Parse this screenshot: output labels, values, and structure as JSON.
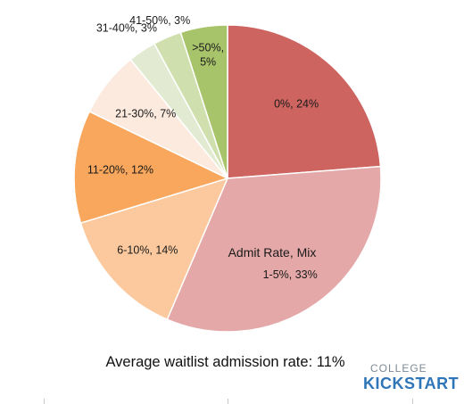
{
  "chart_data": {
    "type": "pie",
    "title": "",
    "slices": [
      {
        "label": "0%, 24%",
        "category": "0%",
        "value": 24,
        "color": "#cd6460"
      },
      {
        "label": "1-5%, 33%",
        "category": "1-5%",
        "value": 33,
        "color": "#e3a8a7"
      },
      {
        "label": "6-10%, 14%",
        "category": "6-10%",
        "value": 14,
        "color": "#fbc99d"
      },
      {
        "label": "11-20%, 12%",
        "category": "11-20%",
        "value": 12,
        "color": "#f9a75c"
      },
      {
        "label": "21-30%, 7%",
        "category": "21-30%",
        "value": 7,
        "color": "#fdeade"
      },
      {
        "label": "31-40%, 3%",
        "category": "31-40%",
        "value": 3,
        "color": "#e2ebd2"
      },
      {
        "label": "41-50%, 3%",
        "category": "41-50%",
        "value": 3,
        "color": "#cfdfae"
      },
      {
        "label": ">50%, 5%",
        "category": ">50%",
        "value": 5,
        "color": "#a8c46a"
      }
    ],
    "annotation": "Admit Rate, Mix"
  },
  "caption": "Average waitlist admission rate: 11%",
  "logo": {
    "top": "COLLEGE",
    "bottom": "KICKSTART"
  }
}
